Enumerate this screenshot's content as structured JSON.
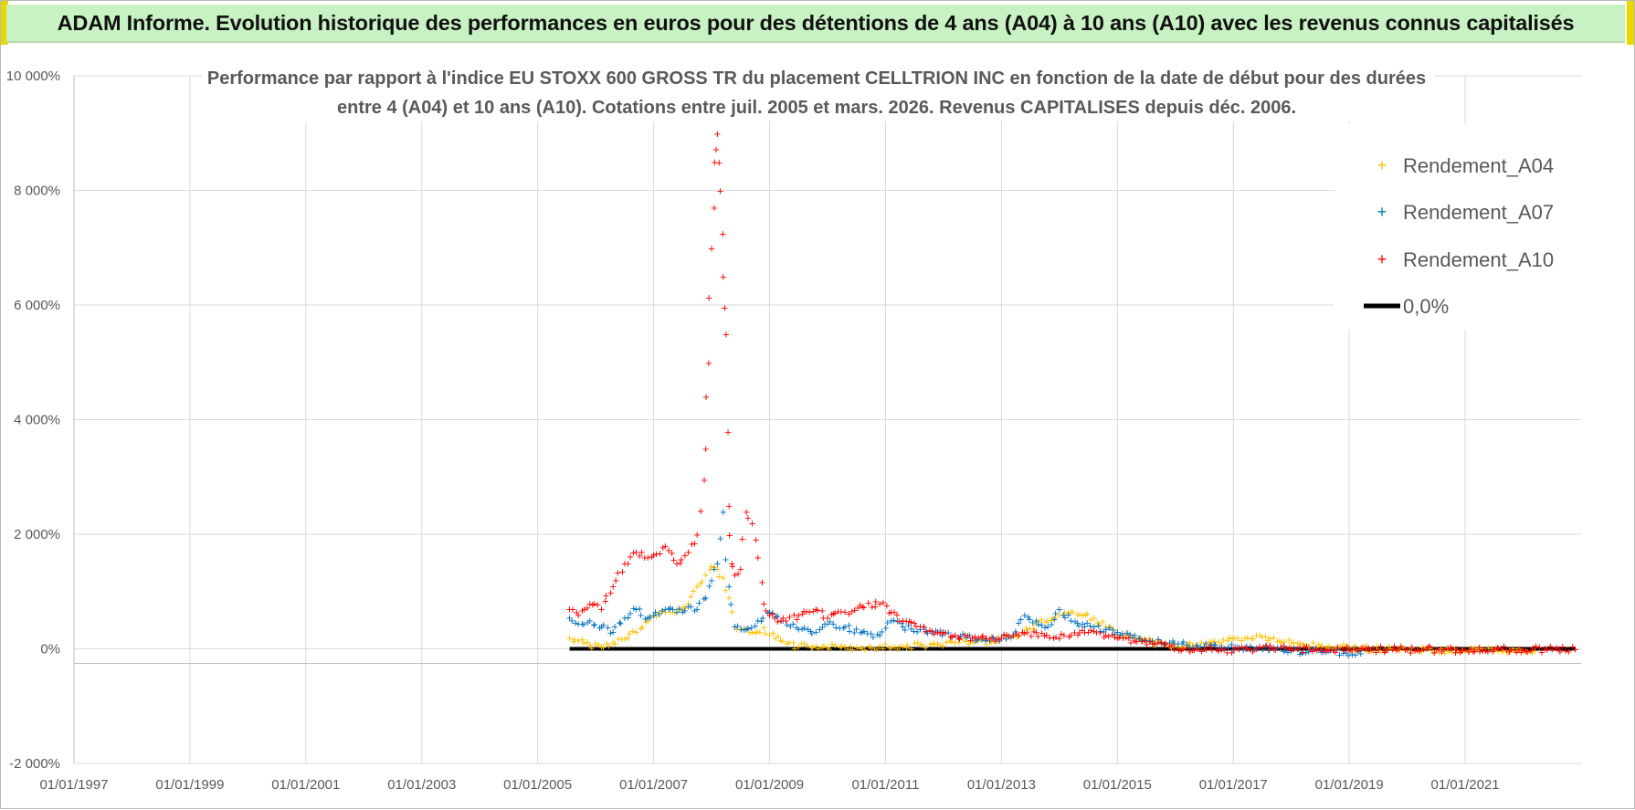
{
  "banner": {
    "title": "ADAM Informe. Evolution historique des performances en euros pour des détentions de 4 ans (A04) à 10 ans (A10) avec les revenus connus capitalisés"
  },
  "colors": {
    "banner_bg": "#c9f2c4",
    "corner": "#e8d800",
    "grid": "#d9d9d9",
    "axis": "#bfbfbf",
    "text": "#595959",
    "a04": "#ffc000",
    "a07": "#0070c0",
    "a10": "#ff0000",
    "zero": "#000000"
  },
  "chart_data": {
    "type": "scatter",
    "title_lines": [
      "Performance par rapport à l'indice EU STOXX 600 GROSS TR  du placement CELLTRION INC en fonction de la date de début pour des durées",
      "entre 4 (A04) et 10 ans (A10). Cotations entre juil. 2005 et mars. 2026. Revenus CAPITALISES depuis déc. 2006."
    ],
    "x_range": [
      1997.0,
      2023.0
    ],
    "y_range": [
      -2000,
      10000
    ],
    "y_ticks": [
      {
        "value": 10000,
        "label": "10 000%"
      },
      {
        "value": 8000,
        "label": "8 000%"
      },
      {
        "value": 6000,
        "label": "6 000%"
      },
      {
        "value": 4000,
        "label": "4 000%"
      },
      {
        "value": 2000,
        "label": "2 000%"
      },
      {
        "value": 0,
        "label": "0%"
      },
      {
        "value": -2000,
        "label": "-2 000%"
      }
    ],
    "x_ticks": [
      {
        "value": 1997.0,
        "label": "01/01/1997"
      },
      {
        "value": 1999.0,
        "label": "01/01/1999"
      },
      {
        "value": 2001.0,
        "label": "01/01/2001"
      },
      {
        "value": 2003.0,
        "label": "01/01/2003"
      },
      {
        "value": 2005.0,
        "label": "01/01/2005"
      },
      {
        "value": 2007.0,
        "label": "01/01/2007"
      },
      {
        "value": 2009.0,
        "label": "01/01/2009"
      },
      {
        "value": 2011.0,
        "label": "01/01/2011"
      },
      {
        "value": 2013.0,
        "label": "01/01/2013"
      },
      {
        "value": 2015.0,
        "label": "01/01/2015"
      },
      {
        "value": 2017.0,
        "label": "01/01/2017"
      },
      {
        "value": 2019.0,
        "label": "01/01/2019"
      },
      {
        "value": 2021.0,
        "label": "01/01/2021"
      }
    ],
    "legend": [
      "Rendement_A04",
      "Rendement_A07",
      "Rendement_A10",
      "0,0%"
    ],
    "legend_position": "top-right",
    "series": [
      {
        "name": "Rendement_A04",
        "x": [
          2005.55,
          2005.7,
          2005.9,
          2006.1,
          2006.3,
          2006.5,
          2006.7,
          2006.9,
          2007.0,
          2007.2,
          2007.4,
          2007.6,
          2007.75,
          2007.9,
          2008.0,
          2008.1,
          2008.2,
          2008.3,
          2008.4,
          2008.5,
          2008.7,
          2008.9,
          2009.1,
          2009.3,
          2009.5,
          2009.8,
          2010.0,
          2010.3,
          2010.6,
          2010.9,
          2011.1,
          2011.3,
          2011.6,
          2011.9,
          2012.2,
          2012.5,
          2012.8,
          2013.0,
          2013.2,
          2013.4,
          2013.6,
          2013.8,
          2014.0,
          2014.2,
          2014.4,
          2014.6,
          2014.8,
          2015.0,
          2015.2,
          2015.5,
          2015.8,
          2016.0,
          2016.3,
          2016.6,
          2016.9,
          2017.2,
          2017.5,
          2017.8,
          2018.0,
          2018.5,
          2019.0,
          2019.5,
          2020.0,
          2020.5,
          2021.0,
          2021.5,
          2022.0,
          2022.2
        ],
        "y": [
          200,
          150,
          80,
          50,
          120,
          180,
          300,
          500,
          600,
          650,
          700,
          800,
          1100,
          1300,
          1450,
          1400,
          1250,
          900,
          400,
          350,
          300,
          380,
          200,
          100,
          50,
          60,
          40,
          50,
          30,
          60,
          20,
          50,
          80,
          100,
          120,
          150,
          140,
          200,
          250,
          300,
          450,
          500,
          600,
          650,
          600,
          550,
          400,
          300,
          200,
          150,
          100,
          80,
          60,
          100,
          150,
          200,
          220,
          150,
          100,
          50,
          30,
          10,
          0,
          -10,
          -20,
          -30,
          -30,
          -20
        ]
      },
      {
        "name": "Rendement_A07",
        "x": [
          2005.55,
          2005.7,
          2005.9,
          2006.1,
          2006.3,
          2006.5,
          2006.7,
          2006.9,
          2007.0,
          2007.2,
          2007.4,
          2007.6,
          2007.75,
          2007.9,
          2008.0,
          2008.1,
          2008.2,
          2008.3,
          2008.4,
          2008.6,
          2008.8,
          2009.0,
          2009.2,
          2009.5,
          2009.8,
          2010.0,
          2010.3,
          2010.6,
          2010.9,
          2011.1,
          2011.3,
          2011.6,
          2011.9,
          2012.2,
          2012.5,
          2012.8,
          2013.0,
          2013.2,
          2013.4,
          2013.6,
          2013.8,
          2014.0,
          2014.2,
          2014.4,
          2014.6,
          2014.8,
          2015.0,
          2015.3,
          2015.6,
          2015.9,
          2016.2,
          2016.5,
          2016.8,
          2017.1,
          2017.4,
          2017.7,
          2018.0,
          2018.3,
          2018.6,
          2018.9,
          2019.2
        ],
        "y": [
          550,
          450,
          500,
          400,
          300,
          550,
          700,
          550,
          600,
          700,
          650,
          750,
          700,
          900,
          1200,
          1500,
          2400,
          1100,
          400,
          350,
          500,
          650,
          500,
          350,
          300,
          450,
          400,
          300,
          250,
          500,
          400,
          350,
          300,
          250,
          200,
          150,
          200,
          250,
          600,
          500,
          400,
          700,
          500,
          450,
          400,
          350,
          300,
          250,
          150,
          120,
          80,
          50,
          40,
          30,
          20,
          0,
          -20,
          -40,
          -50,
          -60,
          -70
        ]
      },
      {
        "name": "Rendement_A10",
        "x": [
          2005.55,
          2005.7,
          2005.9,
          2006.1,
          2006.3,
          2006.5,
          2006.7,
          2006.9,
          2007.0,
          2007.2,
          2007.4,
          2007.6,
          2007.75,
          2007.9,
          2007.95,
          2008.0,
          2008.05,
          2008.1,
          2008.15,
          2008.2,
          2008.25,
          2008.3,
          2008.35,
          2008.4,
          2008.5,
          2008.6,
          2008.7,
          2008.8,
          2008.9,
          2009.0,
          2009.2,
          2009.5,
          2009.8,
          2010.0,
          2010.3,
          2010.6,
          2010.9,
          2011.1,
          2011.3,
          2011.6,
          2011.9,
          2012.2,
          2012.5,
          2012.8,
          2013.0,
          2013.3,
          2013.6,
          2013.9,
          2014.2,
          2014.5,
          2014.8,
          2015.0,
          2015.3,
          2015.6,
          2015.9,
          2016.2,
          2016.5,
          2016.8,
          2017.1,
          2017.4,
          2017.7,
          2018.0,
          2018.5,
          2019.0,
          2019.5,
          2020.0,
          2020.5,
          2021.0,
          2021.5,
          2022.0,
          2022.5,
          2022.9
        ],
        "y": [
          700,
          600,
          800,
          700,
          1100,
          1500,
          1700,
          1600,
          1650,
          1800,
          1500,
          1700,
          2000,
          3500,
          5000,
          7000,
          8500,
          9000,
          8000,
          6500,
          5500,
          2500,
          1500,
          1300,
          1400,
          2400,
          2200,
          1600,
          800,
          600,
          500,
          600,
          700,
          550,
          650,
          750,
          800,
          650,
          500,
          400,
          300,
          250,
          200,
          180,
          200,
          250,
          300,
          200,
          250,
          300,
          250,
          200,
          150,
          100,
          50,
          20,
          10,
          0,
          0,
          10,
          20,
          0,
          0,
          0,
          0,
          0,
          0,
          0,
          0,
          0,
          0,
          0
        ]
      },
      {
        "name": "0,0%",
        "x": [
          2005.55,
          2022.9
        ],
        "y": [
          0,
          0
        ]
      }
    ]
  }
}
